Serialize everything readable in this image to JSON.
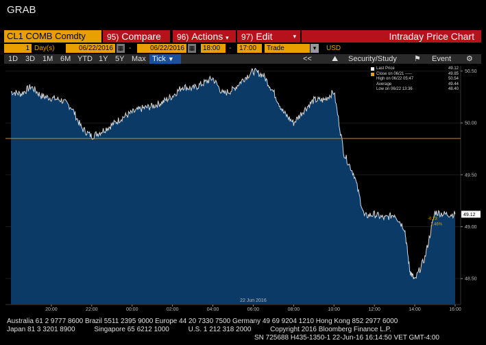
{
  "window_title": "GRAB",
  "toolbar": {
    "ticker": "CL1 COMB Comdty",
    "compare": {
      "num": "95)",
      "label": "Compare"
    },
    "actions": {
      "num": "96)",
      "label": "Actions"
    },
    "edit": {
      "num": "97)",
      "label": "Edit"
    },
    "title": "Intraday Price Chart"
  },
  "params": {
    "period_num": "1",
    "period_unit": "Day(s)",
    "start_date": "06/22/2016",
    "end_date": "06/22/2016",
    "start_time": "18:00",
    "end_time": "17:00",
    "field": "Trade",
    "currency": "USD"
  },
  "ranges": [
    "1D",
    "3D",
    "1M",
    "6M",
    "YTD",
    "1Y",
    "5Y",
    "Max"
  ],
  "tick_label": "Tick",
  "right_tools": {
    "collapse": "<<",
    "security": "Security/Study",
    "event": "Event"
  },
  "chart_data": {
    "type": "area",
    "x_tick_labels": [
      "20:00",
      "22:00",
      "00:00",
      "02:00",
      "04:00",
      "06:00",
      "08:00",
      "10:00",
      "12:00",
      "14:00",
      "16:00"
    ],
    "date_label": "22 Jun 2016",
    "y_ticks": [
      48.5,
      49.0,
      49.5,
      50.0,
      50.5
    ],
    "ylim": [
      48.25,
      50.55
    ],
    "ref_line": 49.85,
    "last_price": 49.12,
    "change": "-0.73",
    "change_pct": "1.46%",
    "series": [
      {
        "x": [
          "18:00",
          "18:30",
          "19:00",
          "19:30",
          "20:00",
          "20:30",
          "21:00",
          "21:30",
          "22:00",
          "22:30",
          "23:00",
          "23:30",
          "00:00",
          "00:30",
          "01:00",
          "01:30",
          "02:00",
          "02:30",
          "03:00",
          "03:30",
          "04:00",
          "04:30",
          "05:00",
          "05:30",
          "06:00",
          "06:30",
          "07:00",
          "07:30",
          "08:00",
          "08:30",
          "09:00",
          "09:30",
          "10:00",
          "10:30",
          "11:00",
          "11:30",
          "12:00",
          "12:30",
          "13:00",
          "13:30",
          "13:45",
          "14:00",
          "14:30",
          "15:00",
          "15:30",
          "16:00"
        ],
        "values": [
          50.3,
          50.28,
          50.35,
          50.26,
          50.24,
          50.22,
          50.15,
          49.95,
          49.87,
          49.92,
          49.98,
          50.05,
          50.1,
          50.14,
          50.16,
          50.2,
          50.26,
          50.35,
          50.33,
          50.38,
          50.43,
          50.28,
          50.32,
          50.42,
          50.5,
          50.46,
          50.3,
          50.1,
          50.0,
          50.12,
          50.22,
          50.22,
          50.3,
          49.7,
          49.5,
          49.1,
          49.12,
          49.08,
          49.12,
          48.98,
          48.58,
          48.48,
          48.7,
          49.14,
          49.12,
          49.12
        ]
      }
    ],
    "legend": [
      {
        "label": "Last Price",
        "value": "49.12",
        "color": "#ffffff"
      },
      {
        "label": "Close on 06/21 -----",
        "value": "49.85",
        "color": "#e8a000"
      },
      {
        "label": "High on 06/22 05:47",
        "value": "50.54",
        "color": "#888888"
      },
      {
        "label": "Average",
        "value": "49.44",
        "color": "#888888"
      },
      {
        "label": "Low on 06/22 13:36",
        "value": "48.40",
        "color": "#888888"
      }
    ]
  },
  "footer": {
    "line1": "Australia 61 2 9777 8600 Brazil 5511 2395 9000 Europe 44 20 7330 7500 Germany 49 69 9204 1210 Hong Kong 852 2977 6000",
    "line2": "Japan 81 3 3201 8900          Singapore 65 6212 1000          U.S. 1 212 318 2000          Copyright 2016 Bloomberg Finance L.P.",
    "line3": "SN 725688 H435-1350-1 22-Jun-16 16:14:50 VET  GMT-4:00"
  },
  "colors": {
    "accent": "#e8a000",
    "toolbar_red": "#b5121b",
    "area_fill": "#0b3a66",
    "ref_line": "#d98a00"
  }
}
